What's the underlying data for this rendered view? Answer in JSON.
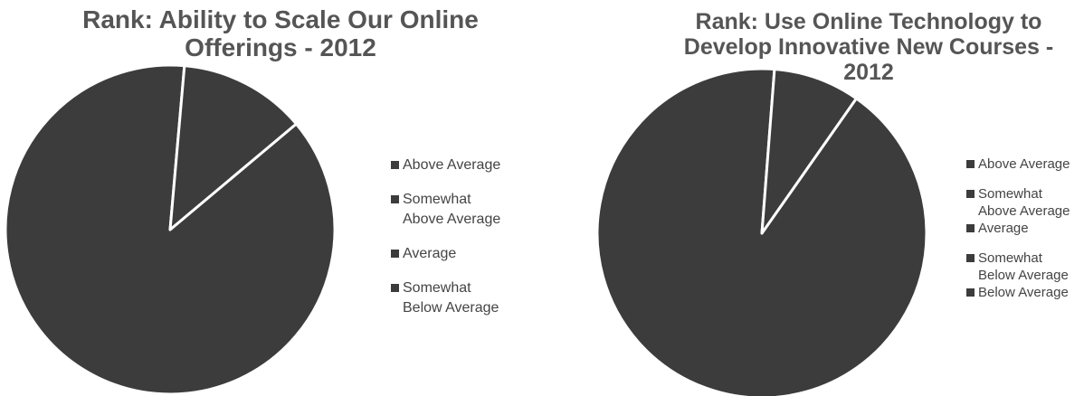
{
  "chart_data": [
    {
      "type": "pie",
      "title": "Rank: Ability to Scale Our Online Offerings - 2012",
      "legend_position": "right",
      "series": [
        {
          "label": "Above Average",
          "value": 87.5,
          "color": "#3c3c3c"
        },
        {
          "label": "Somewhat\nAbove Average",
          "value": 12.5,
          "color": "#3c3c3c"
        },
        {
          "label": "Average",
          "value": 0,
          "color": "#3c3c3c"
        },
        {
          "label": "Somewhat\nBelow Average",
          "value": 0,
          "color": "#3c3c3c"
        }
      ]
    },
    {
      "type": "pie",
      "title": "Rank: Use Online Technology to Develop Innovative New Courses - 2012",
      "legend_position": "right",
      "series": [
        {
          "label": "Above Average",
          "value": 91.5,
          "color": "#3c3c3c"
        },
        {
          "label": "Somewhat\nAbove Average",
          "value": 8.5,
          "color": "#3c3c3c"
        },
        {
          "label": "Average",
          "value": 0,
          "color": "#3c3c3c"
        },
        {
          "label": "Somewhat\nBelow Average",
          "value": 0,
          "color": "#3c3c3c"
        },
        {
          "label": "Below Average",
          "value": 0,
          "color": "#3c3c3c"
        }
      ]
    }
  ]
}
